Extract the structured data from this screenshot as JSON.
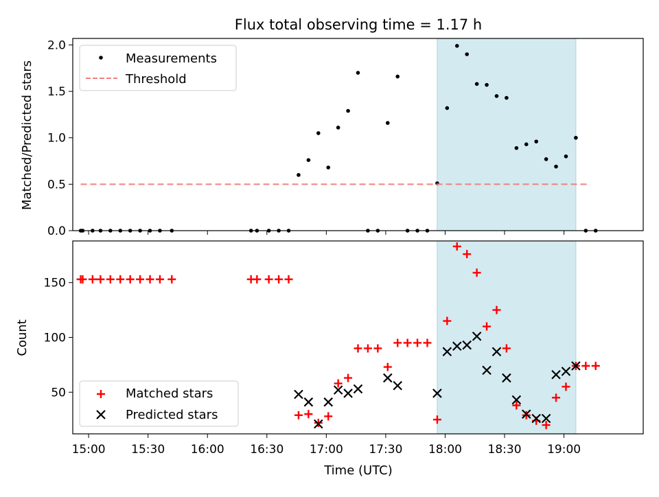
{
  "chart_data": [
    {
      "type": "scatter",
      "title": "Flux total observing time = 1.17 h",
      "ylabel": "Matched/Predicted stars",
      "ylim": [
        0,
        2.07
      ],
      "yticks": [
        "0.0",
        "0.5",
        "1.0",
        "1.5",
        "2.0"
      ],
      "xlim": [
        "14:52",
        "19:40"
      ],
      "shaded_interval": [
        "17:56",
        "19:06"
      ],
      "shade_color": "#d3eaf0",
      "legend_position": "upper left",
      "series": [
        {
          "name": "Measurements",
          "kind": "points",
          "color": "#000000",
          "x": [
            "14:56",
            "14:57",
            "15:02",
            "15:06",
            "15:11",
            "15:16",
            "15:21",
            "15:26",
            "15:31",
            "15:36",
            "15:42",
            "16:22",
            "16:25",
            "16:31",
            "16:36",
            "16:41",
            "16:46",
            "16:51",
            "16:56",
            "17:01",
            "17:06",
            "17:11",
            "17:16",
            "17:21",
            "17:26",
            "17:31",
            "17:36",
            "17:41",
            "17:46",
            "17:51",
            "17:56",
            "18:01",
            "18:06",
            "18:11",
            "18:16",
            "18:21",
            "18:26",
            "18:31",
            "18:36",
            "18:41",
            "18:46",
            "18:51",
            "18:56",
            "19:01",
            "19:06",
            "19:11",
            "19:16"
          ],
          "y": [
            0,
            0,
            0,
            0,
            0,
            0,
            0,
            0,
            0,
            0,
            0,
            0,
            0,
            0,
            0,
            0,
            0.6,
            0.76,
            1.05,
            0.68,
            1.11,
            1.29,
            1.7,
            0,
            0,
            1.16,
            1.66,
            0,
            0,
            0,
            0.51,
            1.32,
            1.99,
            1.9,
            1.58,
            1.57,
            1.45,
            1.43,
            0.89,
            0.93,
            0.96,
            0.77,
            0.69,
            0.8,
            1.0,
            0,
            0
          ]
        },
        {
          "name": "Threshold",
          "kind": "dashed-line",
          "color": "#f08080",
          "x": [
            "14:56",
            "19:13"
          ],
          "y": [
            0.5,
            0.5
          ]
        }
      ]
    },
    {
      "type": "scatter",
      "xlabel": "Time (UTC)",
      "ylabel": "Count",
      "ylim": [
        12,
        188
      ],
      "yticks": [
        "50",
        "100",
        "150"
      ],
      "xlim": [
        "14:52",
        "19:40"
      ],
      "xticks": [
        "15:00",
        "15:30",
        "16:00",
        "16:30",
        "17:00",
        "17:30",
        "18:00",
        "18:30",
        "19:00"
      ],
      "shaded_interval": [
        "17:56",
        "19:06"
      ],
      "shade_color": "#d3eaf0",
      "legend_position": "lower left",
      "series": [
        {
          "name": "Matched stars",
          "marker": "plus",
          "color": "#ff0000",
          "x": [
            "14:56",
            "14:57",
            "15:02",
            "15:06",
            "15:11",
            "15:16",
            "15:21",
            "15:26",
            "15:31",
            "15:36",
            "15:42",
            "16:22",
            "16:25",
            "16:31",
            "16:36",
            "16:41",
            "16:46",
            "16:51",
            "16:56",
            "17:01",
            "17:06",
            "17:11",
            "17:16",
            "17:21",
            "17:26",
            "17:31",
            "17:36",
            "17:41",
            "17:46",
            "17:51",
            "17:56",
            "18:01",
            "18:06",
            "18:11",
            "18:16",
            "18:21",
            "18:26",
            "18:31",
            "18:36",
            "18:41",
            "18:46",
            "18:51",
            "18:56",
            "19:01",
            "19:06",
            "19:11",
            "19:16"
          ],
          "y": [
            153,
            153,
            153,
            153,
            153,
            153,
            153,
            153,
            153,
            153,
            153,
            153,
            153,
            153,
            153,
            153,
            29,
            30,
            22,
            28,
            58,
            63,
            90,
            90,
            90,
            73,
            95,
            95,
            95,
            95,
            25,
            115,
            183,
            176,
            159,
            110,
            125,
            90,
            38,
            29,
            24,
            20,
            45,
            55,
            74,
            74,
            74
          ]
        },
        {
          "name": "Predicted stars",
          "marker": "x",
          "color": "#000000",
          "x": [
            "16:46",
            "16:51",
            "16:56",
            "17:01",
            "17:06",
            "17:11",
            "17:16",
            "17:31",
            "17:36",
            "17:56",
            "18:01",
            "18:06",
            "18:11",
            "18:16",
            "18:21",
            "18:26",
            "18:31",
            "18:36",
            "18:41",
            "18:46",
            "18:51",
            "18:56",
            "19:01",
            "19:06"
          ],
          "y": [
            48,
            41,
            21,
            41,
            52,
            49,
            53,
            63,
            56,
            49,
            87,
            92,
            93,
            101,
            70,
            87,
            63,
            43,
            30,
            26,
            26,
            66,
            69,
            74
          ]
        }
      ]
    }
  ]
}
